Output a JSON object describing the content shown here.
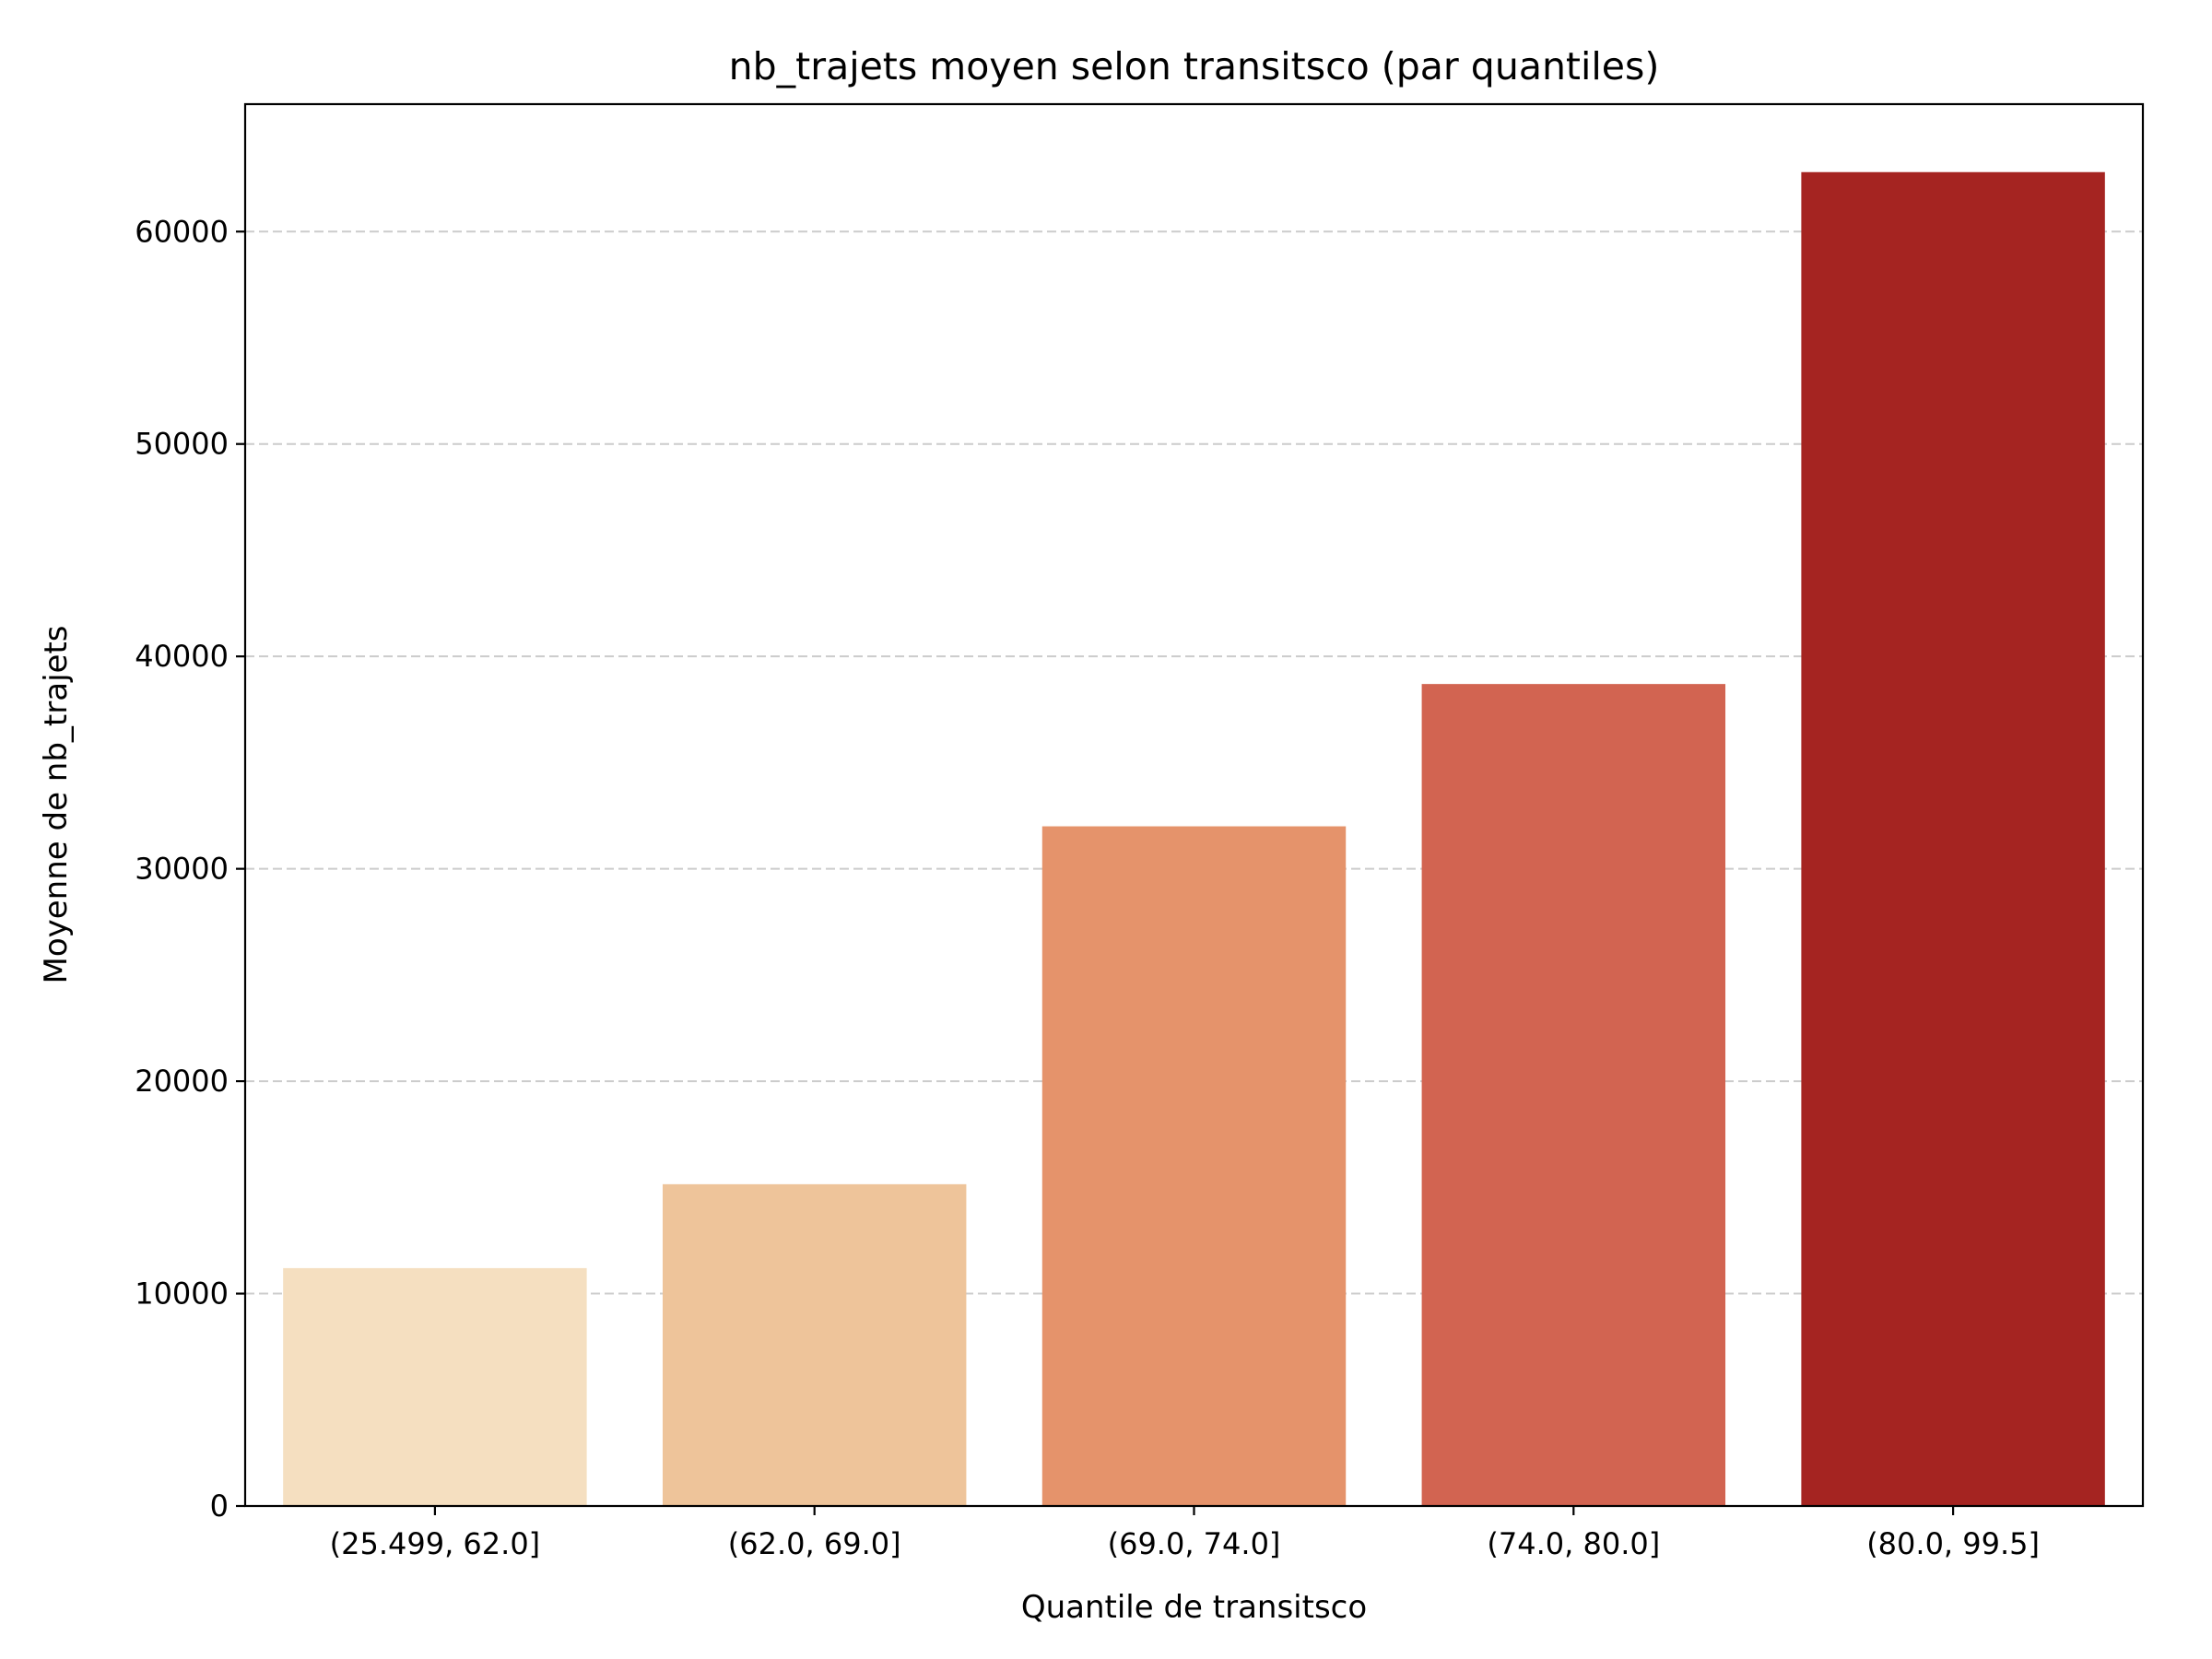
{
  "chart_data": {
    "type": "bar",
    "title": "nb_trajets moyen selon transitsco (par quantiles)",
    "xlabel": "Quantile de transitsco",
    "ylabel": "Moyenne de nb_trajets",
    "categories": [
      "(25.499, 62.0]",
      "(62.0, 69.0]",
      "(69.0, 74.0]",
      "(74.0, 80.0]",
      "(80.0, 99.5]"
    ],
    "values": [
      11200,
      15150,
      32000,
      38700,
      62800
    ],
    "colors": [
      "#f5dfc0",
      "#eec49a",
      "#e5936b",
      "#d26451",
      "#a52421"
    ],
    "ylim": [
      0,
      66000
    ],
    "yticks": [
      0,
      10000,
      20000,
      30000,
      40000,
      50000,
      60000
    ],
    "ytick_labels": [
      "0",
      "10000",
      "20000",
      "30000",
      "40000",
      "50000",
      "60000"
    ],
    "grid": {
      "axis": "y",
      "style": "dashed",
      "color": "#cccccc"
    },
    "legend": false
  }
}
